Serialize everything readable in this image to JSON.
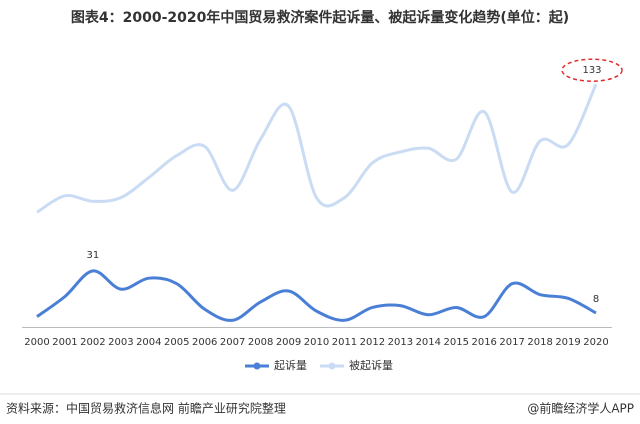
{
  "chart_data": {
    "type": "line",
    "title": "图表4：2000-2020年中国贸易救济案件起诉量、被起诉量变化趋势(单位：起)",
    "categories": [
      "2000",
      "2001",
      "2002",
      "2003",
      "2004",
      "2005",
      "2006",
      "2007",
      "2008",
      "2009",
      "2010",
      "2011",
      "2012",
      "2013",
      "2014",
      "2015",
      "2016",
      "2017",
      "2018",
      "2019",
      "2020"
    ],
    "series": [
      {
        "name": "起诉量",
        "color": "#4a7fd6",
        "values": [
          6,
          17,
          31,
          21,
          27,
          24,
          10,
          4,
          14,
          20,
          9,
          4,
          11,
          12,
          7,
          11,
          6,
          24,
          18,
          16,
          8
        ],
        "value_labels": [
          null,
          null,
          "31",
          null,
          null,
          null,
          null,
          null,
          null,
          null,
          null,
          null,
          null,
          null,
          null,
          null,
          null,
          null,
          null,
          null,
          "8"
        ]
      },
      {
        "name": "被起诉量",
        "color": "#c9dcf3",
        "values": [
          63,
          72,
          69,
          71,
          82,
          94,
          99,
          75,
          103,
          121,
          71,
          71,
          90,
          96,
          98,
          92,
          118,
          74,
          102,
          100,
          133
        ],
        "value_labels": [
          null,
          null,
          null,
          null,
          null,
          null,
          null,
          null,
          null,
          null,
          null,
          null,
          null,
          null,
          null,
          null,
          null,
          null,
          null,
          null,
          "133"
        ]
      }
    ],
    "source": "资料来源：中国贸易救济信息网 前瞻产业研究院整理",
    "brand": "@前瞻经济学人APP"
  }
}
